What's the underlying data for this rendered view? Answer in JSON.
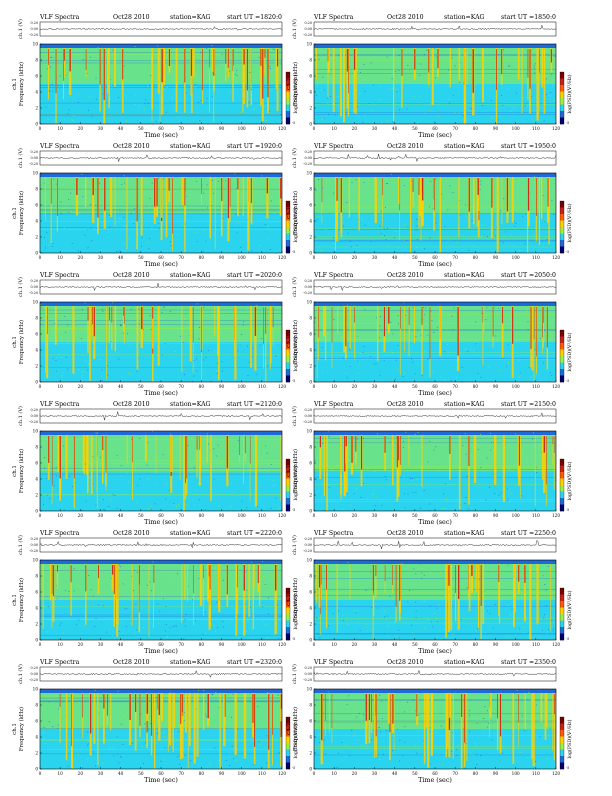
{
  "page": {
    "title_prefix": "VLF Spectra",
    "date": "Oct28 2010",
    "station": "station=KAG",
    "start_label": "start UT =",
    "top_ylabel": "ch.1 (V)",
    "top_yticks": [
      "0.20",
      "0.00",
      "-0.20"
    ],
    "spec_ylabel": "Frequency (kHz)",
    "spec_ylabel_prefix": "ch.1",
    "spec_yticks": [
      "10",
      "8",
      "6",
      "4",
      "2",
      "0"
    ],
    "colorbar_label": "log(PSD)(V²/Hz)",
    "colorbar_min": "-5",
    "xlabel": "Time (sec)",
    "xticks": [
      "0",
      "10",
      "20",
      "30",
      "40",
      "50",
      "60",
      "70",
      "80",
      "90",
      "100",
      "110",
      "120"
    ],
    "colors": {
      "background": "#2bd4ee",
      "low": "#1e6ad8",
      "mid": "#9cef3a",
      "high": "#ffd000",
      "peak": "#c81e14"
    }
  },
  "chart_data": [
    {
      "type": "heatmap",
      "title": "VLF Spectra Oct28 2010 station=KAG start UT =1820:0",
      "start_ut": "1820:0",
      "xlabel": "Time (sec)",
      "ylabel": "Frequency (kHz)",
      "xlim": [
        0,
        120
      ],
      "ylim": [
        0,
        10
      ]
    },
    {
      "type": "heatmap",
      "title": "VLF Spectra Oct28 2010 station=KAG start UT =1850:0",
      "start_ut": "1850:0",
      "xlabel": "Time (sec)",
      "ylabel": "Frequency (kHz)",
      "xlim": [
        0,
        120
      ],
      "ylim": [
        0,
        10
      ]
    },
    {
      "type": "heatmap",
      "title": "VLF Spectra Oct28 2010 station=KAG start UT =1920:0",
      "start_ut": "1920:0",
      "xlabel": "Time (sec)",
      "ylabel": "Frequency (kHz)",
      "xlim": [
        0,
        120
      ],
      "ylim": [
        0,
        10
      ]
    },
    {
      "type": "heatmap",
      "title": "VLF Spectra Oct28 2010 station=KAG start UT =1950:0",
      "start_ut": "1950:0",
      "xlabel": "Time (sec)",
      "ylabel": "Frequency (kHz)",
      "xlim": [
        0,
        120
      ],
      "ylim": [
        0,
        10
      ]
    },
    {
      "type": "heatmap",
      "title": "VLF Spectra Oct28 2010 station=KAG start UT =2020:0",
      "start_ut": "2020:0",
      "xlabel": "Time (sec)",
      "ylabel": "Frequency (kHz)",
      "xlim": [
        0,
        120
      ],
      "ylim": [
        0,
        10
      ]
    },
    {
      "type": "heatmap",
      "title": "VLF Spectra Oct28 2010 station=KAG start UT =2050:0",
      "start_ut": "2050:0",
      "xlabel": "Time (sec)",
      "ylabel": "Frequency (kHz)",
      "xlim": [
        0,
        120
      ],
      "ylim": [
        0,
        10
      ]
    },
    {
      "type": "heatmap",
      "title": "VLF Spectra Oct28 2010 station=KAG start UT =2120:0",
      "start_ut": "2120:0",
      "xlabel": "Time (sec)",
      "ylabel": "Frequency (kHz)",
      "xlim": [
        0,
        120
      ],
      "ylim": [
        0,
        10
      ]
    },
    {
      "type": "heatmap",
      "title": "VLF Spectra Oct28 2010 station=KAG start UT =2150:0",
      "start_ut": "2150:0",
      "xlabel": "Time (sec)",
      "ylabel": "Frequency (kHz)",
      "xlim": [
        0,
        120
      ],
      "ylim": [
        0,
        10
      ]
    },
    {
      "type": "heatmap",
      "title": "VLF Spectra Oct28 2010 station=KAG start UT =2220:0",
      "start_ut": "2220:0",
      "xlabel": "Time (sec)",
      "ylabel": "Frequency (kHz)",
      "xlim": [
        0,
        120
      ],
      "ylim": [
        0,
        10
      ]
    },
    {
      "type": "heatmap",
      "title": "VLF Spectra Oct28 2010 station=KAG start UT =2250:0",
      "start_ut": "2250:0",
      "xlabel": "Time (sec)",
      "ylabel": "Frequency (kHz)",
      "xlim": [
        0,
        120
      ],
      "ylim": [
        0,
        10
      ]
    },
    {
      "type": "heatmap",
      "title": "VLF Spectra Oct28 2010 station=KAG start UT =2320:0",
      "start_ut": "2320:0",
      "xlabel": "Time (sec)",
      "ylabel": "Frequency (kHz)",
      "xlim": [
        0,
        120
      ],
      "ylim": [
        0,
        10
      ]
    },
    {
      "type": "heatmap",
      "title": "VLF Spectra Oct28 2010 station=KAG start UT =2350:0",
      "start_ut": "2350:0",
      "xlabel": "Time (sec)",
      "ylabel": "Frequency (kHz)",
      "xlim": [
        0,
        120
      ],
      "ylim": [
        0,
        10
      ]
    }
  ]
}
